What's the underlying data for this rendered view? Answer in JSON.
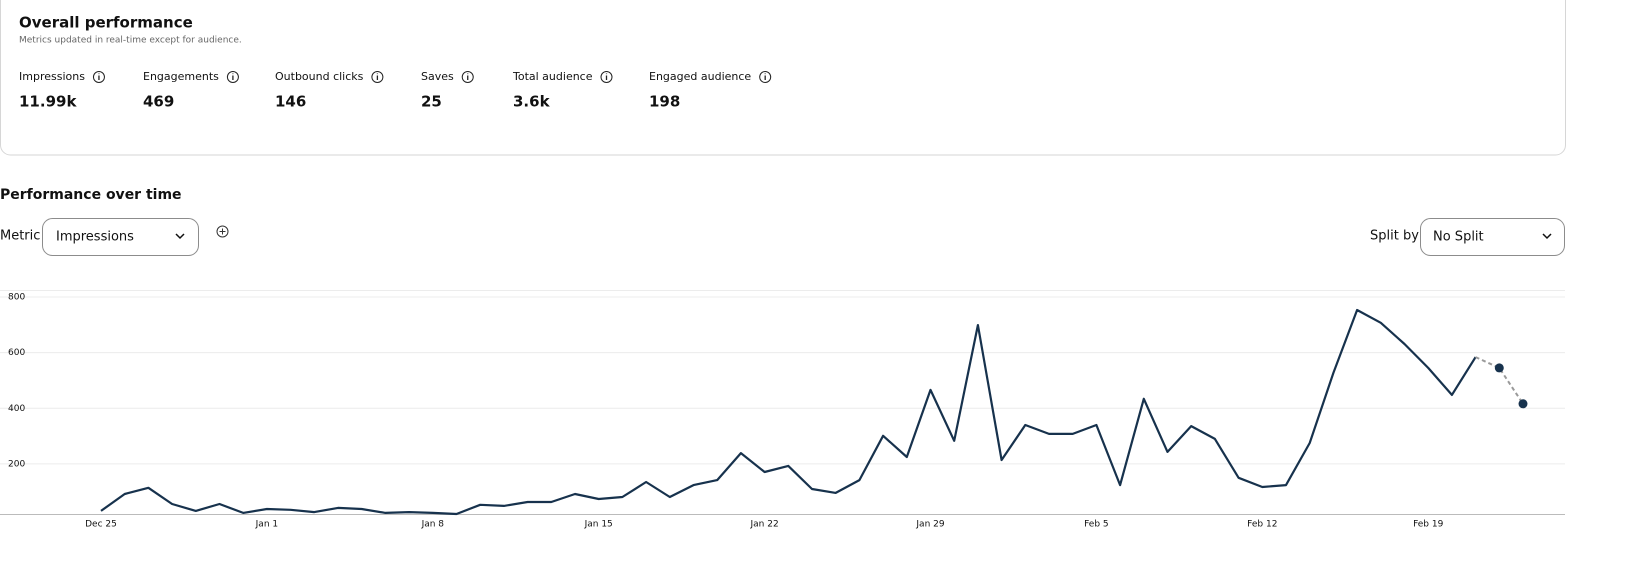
{
  "header": {
    "title": "Overall performance",
    "subtitle": "Metrics updated in real-time except for audience."
  },
  "metrics": [
    {
      "label": "Impressions",
      "value": "11.99k"
    },
    {
      "label": "Engagements",
      "value": "469"
    },
    {
      "label": "Outbound clicks",
      "value": "146"
    },
    {
      "label": "Saves",
      "value": "25"
    },
    {
      "label": "Total audience",
      "value": "3.6k"
    },
    {
      "label": "Engaged audience",
      "value": "198"
    }
  ],
  "section": {
    "title": "Performance over time",
    "metric_label": "Metric",
    "metric_value": "Impressions",
    "split_label": "Split by",
    "split_value": "No Split"
  },
  "chart_data": {
    "type": "line",
    "categories": [
      "Dec 25",
      null,
      null,
      null,
      null,
      null,
      null,
      "Jan 1",
      null,
      null,
      null,
      null,
      null,
      null,
      "Jan 8",
      null,
      null,
      null,
      null,
      null,
      null,
      "Jan 15",
      null,
      null,
      null,
      null,
      null,
      null,
      "Jan 22",
      null,
      null,
      null,
      null,
      null,
      null,
      "Jan 29",
      null,
      null,
      null,
      null,
      null,
      null,
      "Feb 5",
      null,
      null,
      null,
      null,
      null,
      null,
      "Feb 12",
      null,
      null,
      null,
      null,
      null,
      null,
      "Feb 19",
      null,
      null,
      null,
      null
    ],
    "series": [
      {
        "color": "#17324d",
        "dashed": false,
        "markers": false,
        "values": [
          31,
          92,
          114,
          56,
          31,
          56,
          24,
          38,
          35,
          27,
          42,
          38,
          24,
          27,
          24,
          20,
          53,
          49,
          63,
          63,
          92,
          74,
          81,
          135,
          81,
          124,
          142,
          239,
          171,
          193,
          110,
          96,
          142,
          301,
          225,
          466,
          283,
          699,
          214,
          340,
          308,
          308,
          340,
          124,
          434,
          243,
          336,
          290,
          150,
          117,
          124,
          275,
          527,
          753,
          707,
          631,
          545,
          448,
          584,
          null,
          null
        ]
      },
      {
        "color": "#9a9a9a",
        "dashed": true,
        "markers": true,
        "marker_color": "#17324d",
        "values": [
          null,
          null,
          null,
          null,
          null,
          null,
          null,
          null,
          null,
          null,
          null,
          null,
          null,
          null,
          null,
          null,
          null,
          null,
          null,
          null,
          null,
          null,
          null,
          null,
          null,
          null,
          null,
          null,
          null,
          null,
          null,
          null,
          null,
          null,
          null,
          null,
          null,
          null,
          null,
          null,
          null,
          null,
          null,
          null,
          null,
          null,
          null,
          null,
          null,
          null,
          null,
          null,
          null,
          null,
          null,
          null,
          null,
          null,
          584,
          545,
          416
        ]
      }
    ],
    "ylim": [
      20,
      825
    ],
    "yticks": [
      200,
      400,
      600,
      800
    ],
    "grid": true
  }
}
